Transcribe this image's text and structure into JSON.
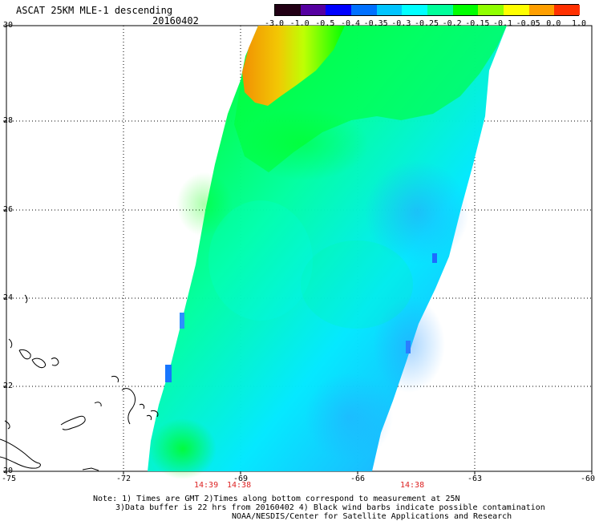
{
  "header": {
    "title": "ASCAT 25KM MLE-1 descending",
    "date": "20160402"
  },
  "colorbar": {
    "labels": [
      "-3.0",
      "-1.0",
      "-0.5",
      "-0.4",
      "-0.35",
      "-0.3",
      "-0.25",
      "-0.2",
      "-0.15",
      "-0.1",
      "-0.05",
      "0.0",
      "1.0"
    ],
    "colors": [
      "#220014",
      "#5500a0",
      "#0000ff",
      "#0070ff",
      "#00c4ff",
      "#00ffff",
      "#00ff9a",
      "#00ff00",
      "#90ff00",
      "#ffff00",
      "#ff9f00",
      "#ff3000"
    ]
  },
  "map": {
    "lon_labels": [
      "-75",
      "-72",
      "-69",
      "-66",
      "-63",
      "-60"
    ],
    "lat_labels": [
      "30",
      "28",
      "26",
      "24",
      "22",
      "20"
    ],
    "swath_color_main": "#00ffa0",
    "swath_color_green": "#00ff00",
    "swath_color_blue": "#00d4ff",
    "land_outline_color": "#000000"
  },
  "times": {
    "labels": [
      "14:39",
      "14:38",
      "14:38"
    ]
  },
  "notes": {
    "line1": "Note: 1) Times are GMT 2)Times along bottom correspond to measurement at 25N",
    "line2": "3)Data buffer is 22 hrs from 20160402 4) Black wind barbs indicate possible contamination",
    "line3": "NOAA/NESDIS/Center for Satellite Applications and Research"
  }
}
